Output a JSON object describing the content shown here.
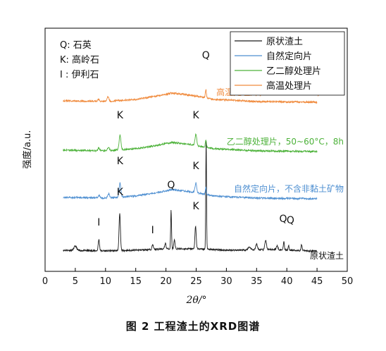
{
  "chart_data": {
    "type": "line",
    "xlabel": "2θ/°",
    "ylabel": "强度/a.u.",
    "xlim": [
      0,
      50
    ],
    "xticks": [
      0,
      5,
      10,
      15,
      20,
      25,
      30,
      35,
      40,
      45,
      50
    ],
    "mineral_key": [
      "Q: 石英",
      "K: 高岭石",
      "I : 伊利石"
    ],
    "legend_position": "top-right",
    "series": [
      {
        "name": "原状渣土",
        "color": "#1a1a1a",
        "label": "原状渣土",
        "baseline": 0,
        "background": [
          [
            3,
            0
          ],
          [
            10,
            -1
          ],
          [
            15,
            0
          ],
          [
            20,
            2
          ],
          [
            25,
            2
          ],
          [
            30,
            0
          ],
          [
            38,
            1
          ],
          [
            44,
            -1
          ],
          [
            45,
            -1
          ]
        ],
        "peaks": [
          {
            "x": 5.0,
            "h": 6,
            "w": 0.3
          },
          {
            "x": 8.9,
            "h": 16,
            "w": 0.15
          },
          {
            "x": 12.35,
            "h": 52,
            "w": 0.16
          },
          {
            "x": 17.8,
            "h": 7,
            "w": 0.15
          },
          {
            "x": 19.9,
            "h": 8,
            "w": 0.15
          },
          {
            "x": 20.85,
            "h": 55,
            "w": 0.1
          },
          {
            "x": 21.4,
            "h": 12,
            "w": 0.14
          },
          {
            "x": 24.9,
            "h": 32,
            "w": 0.15
          },
          {
            "x": 26.65,
            "h": 155,
            "w": 0.09
          },
          {
            "x": 33.8,
            "h": 4,
            "w": 0.3
          },
          {
            "x": 35.0,
            "h": 8,
            "w": 0.2
          },
          {
            "x": 36.5,
            "h": 14,
            "w": 0.18
          },
          {
            "x": 38.4,
            "h": 5,
            "w": 0.2
          },
          {
            "x": 39.5,
            "h": 12,
            "w": 0.12
          },
          {
            "x": 40.3,
            "h": 6,
            "w": 0.12
          },
          {
            "x": 42.45,
            "h": 9,
            "w": 0.12
          }
        ]
      },
      {
        "name": "自然定向片",
        "color": "#4e8fd1",
        "label": "自然定向片，不含非黏土矿物",
        "baseline": 75,
        "background": [
          [
            3,
            0
          ],
          [
            10,
            -1
          ],
          [
            15,
            2
          ],
          [
            18,
            6
          ],
          [
            21,
            11
          ],
          [
            24,
            8
          ],
          [
            28,
            2
          ],
          [
            35,
            -1
          ],
          [
            45,
            -2
          ]
        ],
        "peaks": [
          {
            "x": 8.9,
            "h": 4,
            "w": 0.2
          },
          {
            "x": 10.5,
            "h": 6,
            "w": 0.2
          },
          {
            "x": 12.4,
            "h": 20,
            "w": 0.2
          },
          {
            "x": 24.95,
            "h": 14,
            "w": 0.2
          },
          {
            "x": 26.6,
            "h": 10,
            "w": 0.12
          }
        ]
      },
      {
        "name": "乙二醇处理片",
        "color": "#4db23a",
        "label": "乙二醇处理片，50~60°C，8h",
        "baseline": 142,
        "background": [
          [
            3,
            0
          ],
          [
            10,
            -1
          ],
          [
            15,
            2
          ],
          [
            18,
            6
          ],
          [
            21,
            11
          ],
          [
            24,
            8
          ],
          [
            28,
            2
          ],
          [
            35,
            -1
          ],
          [
            45,
            -2
          ]
        ],
        "peaks": [
          {
            "x": 8.9,
            "h": 4,
            "w": 0.2
          },
          {
            "x": 10.5,
            "h": 5,
            "w": 0.2
          },
          {
            "x": 12.4,
            "h": 21,
            "w": 0.2
          },
          {
            "x": 24.95,
            "h": 16,
            "w": 0.2
          },
          {
            "x": 26.6,
            "h": 11,
            "w": 0.12
          }
        ]
      },
      {
        "name": "高温处理片",
        "color": "#f08a3c",
        "label": "高温处理片，450~550°C，2.5h",
        "baseline": 212,
        "background": [
          [
            3,
            0
          ],
          [
            10,
            -1
          ],
          [
            15,
            2
          ],
          [
            18,
            6
          ],
          [
            21,
            11
          ],
          [
            24,
            8
          ],
          [
            28,
            2
          ],
          [
            35,
            -1
          ],
          [
            45,
            -2
          ]
        ],
        "peaks": [
          {
            "x": 8.9,
            "h": 3,
            "w": 0.2
          },
          {
            "x": 10.4,
            "h": 7,
            "w": 0.2
          },
          {
            "x": 26.6,
            "h": 12,
            "w": 0.12
          }
        ]
      }
    ],
    "annotations": [
      {
        "text": "I",
        "x": 8.9,
        "y": 35
      },
      {
        "text": "K",
        "x": 12.4,
        "y": 78
      },
      {
        "text": "I",
        "x": 17.8,
        "y": 24
      },
      {
        "text": "Q",
        "x": 20.85,
        "y": 88
      },
      {
        "text": "K",
        "x": 24.95,
        "y": 58
      },
      {
        "text": "Q",
        "x": 26.6,
        "y": 272
      },
      {
        "text": "Q",
        "x": 39.4,
        "y": 40
      },
      {
        "text": "Q",
        "x": 40.6,
        "y": 38
      },
      {
        "text": "K",
        "x": 12.4,
        "y": 122
      },
      {
        "text": "K",
        "x": 24.95,
        "y": 115
      },
      {
        "text": "K",
        "x": 12.4,
        "y": 187
      },
      {
        "text": "K",
        "x": 24.95,
        "y": 187
      }
    ]
  },
  "caption": "图 2   工程渣土的XRD图谱"
}
